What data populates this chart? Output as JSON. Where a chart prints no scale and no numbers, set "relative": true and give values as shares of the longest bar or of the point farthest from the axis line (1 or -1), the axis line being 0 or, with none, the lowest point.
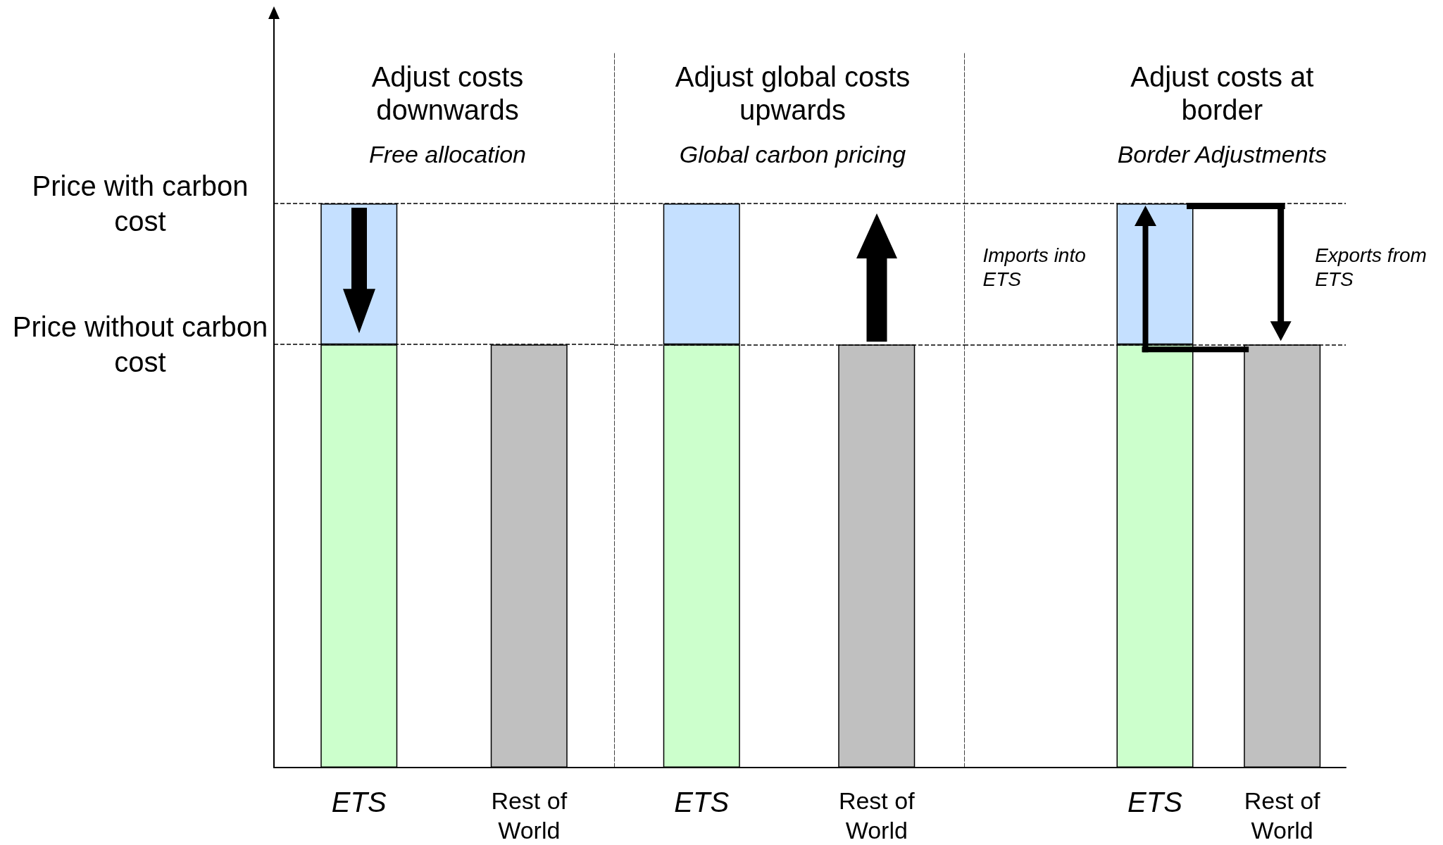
{
  "chart_data": [
    {
      "type": "bar",
      "title": "Adjust costs downwards",
      "subtitle": "Free allocation",
      "categories": [
        "ETS",
        "Rest of World"
      ],
      "relative": true,
      "stacked": true,
      "series": [
        {
          "colors": [
            "#ccffcc",
            "#c0c0c0"
          ],
          "values": [
            0.75,
            0.75
          ]
        },
        {
          "color": "#c5e0ff",
          "values": [
            0.25,
            null
          ]
        }
      ],
      "ref_lines": [
        {
          "axis": "y",
          "value": 1,
          "label": "Price with carbon cost",
          "line_style": "dashed"
        },
        {
          "axis": "y",
          "value": 0.75,
          "label": "Price without carbon cost",
          "line_style": "dashed"
        }
      ]
    },
    {
      "type": "bar",
      "title": "Adjust global costs upwards",
      "subtitle": "Global carbon pricing",
      "categories": [
        "ETS",
        "Rest of World"
      ],
      "relative": true,
      "stacked": true,
      "series": [
        {
          "colors": [
            "#ccffcc",
            "#c0c0c0"
          ],
          "values": [
            0.75,
            0.75
          ]
        },
        {
          "color": "#c5e0ff",
          "values": [
            0.25,
            null
          ]
        }
      ],
      "ref_lines": [
        {
          "axis": "y",
          "value": 1,
          "line_style": "dashed"
        },
        {
          "axis": "y",
          "value": 0.75,
          "line_style": "dashed"
        }
      ]
    },
    {
      "type": "bar",
      "title": "Adjust costs at border",
      "subtitle": "Border Adjustments",
      "categories": [
        null,
        "ETS",
        "Rest of World"
      ],
      "relative": true,
      "stacked": true,
      "series": [
        {
          "colors": [
            null,
            "#ccffcc",
            "#c0c0c0"
          ],
          "values": [
            null,
            0.75,
            0.75
          ]
        },
        {
          "color": "#c5e0ff",
          "values": [
            null,
            0.25,
            null
          ]
        }
      ],
      "ref_lines": [
        {
          "axis": "y",
          "value": 1,
          "line_style": "dashed"
        },
        {
          "axis": "y",
          "value": 0.75,
          "line_style": "dashed"
        }
      ],
      "annotations": [
        "Imports into ETS",
        "Exports from ETS"
      ]
    }
  ]
}
